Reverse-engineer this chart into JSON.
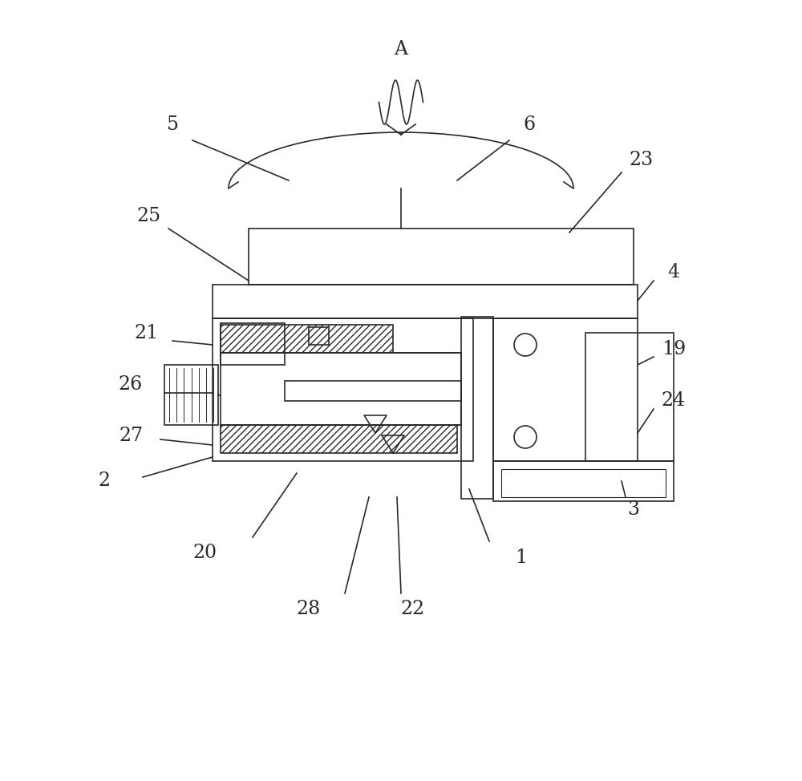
{
  "fig_width": 10.0,
  "fig_height": 9.74,
  "bg_color": "#ffffff",
  "line_color": "#2a2a2a",
  "lw": 1.2,
  "lw_thick": 1.5,
  "label_fs": 17
}
